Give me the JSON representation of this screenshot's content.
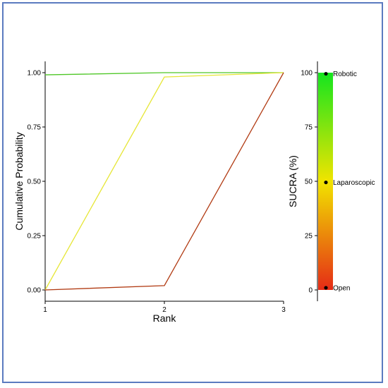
{
  "chart_data": [
    {
      "type": "line",
      "xlabel": "Rank",
      "ylabel": "Cumulative Probability",
      "x": [
        1,
        2,
        3
      ],
      "xlim": [
        1,
        3
      ],
      "ylim": [
        0,
        1
      ],
      "x_ticks": [
        "1",
        "2",
        "3"
      ],
      "y_ticks": [
        "0.00",
        "0.25",
        "0.50",
        "0.75",
        "1.00"
      ],
      "grid": false,
      "series": [
        {
          "name": "Robotic",
          "color": "#4ec726",
          "values": [
            0.99,
            1.0,
            1.0
          ]
        },
        {
          "name": "Laparoscopic",
          "color": "#e6e635",
          "values": [
            0.0,
            0.98,
            1.0
          ]
        },
        {
          "name": "Open",
          "color": "#b13a12",
          "values": [
            0.0,
            0.02,
            1.0
          ]
        }
      ]
    },
    {
      "type": "scatter",
      "ylabel": "SUCRA (%)",
      "ylim": [
        0,
        100
      ],
      "y_ticks": [
        "0",
        "25",
        "50",
        "75",
        "100"
      ],
      "colorbar": {
        "low": "#e52b16",
        "mid": "#f1e400",
        "high": "#14e51e"
      },
      "points": [
        {
          "label": "Robotic",
          "value": 99.5
        },
        {
          "label": "Laparoscopic",
          "value": 49.5
        },
        {
          "label": "Open",
          "value": 1.0
        }
      ]
    }
  ]
}
